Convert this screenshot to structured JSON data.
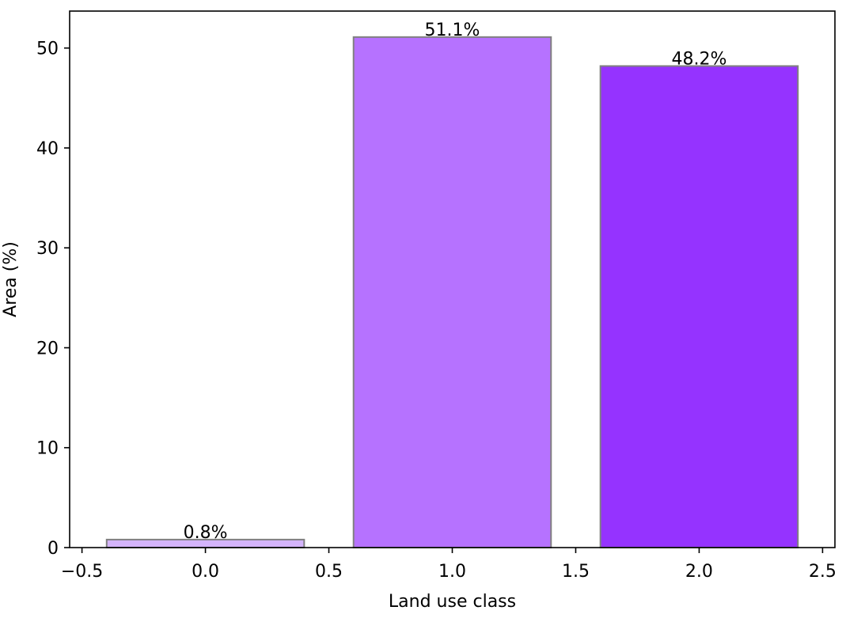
{
  "chart_data": {
    "type": "bar",
    "title": "",
    "xlabel": "Land use class",
    "ylabel": "Area (%)",
    "x": [
      0,
      1,
      2
    ],
    "values": [
      0.8,
      51.1,
      48.2
    ],
    "data_labels": [
      "0.8%",
      "51.1%",
      "48.2%"
    ],
    "bar_colors": [
      "#d4b4fb",
      "#b672ff",
      "#9533ff"
    ],
    "bar_edge_color": "#808080",
    "bar_width": 0.8,
    "xlim": [
      -0.55,
      2.55
    ],
    "ylim": [
      0,
      53.7
    ],
    "xticks": [
      -0.5,
      0.0,
      0.5,
      1.0,
      1.5,
      2.0,
      2.5
    ],
    "xtick_labels": [
      "−0.5",
      "0.0",
      "0.5",
      "1.0",
      "1.5",
      "2.0",
      "2.5"
    ],
    "yticks": [
      0,
      10,
      20,
      30,
      40,
      50
    ],
    "ytick_labels": [
      "0",
      "10",
      "20",
      "30",
      "40",
      "50"
    ],
    "grid": false
  }
}
